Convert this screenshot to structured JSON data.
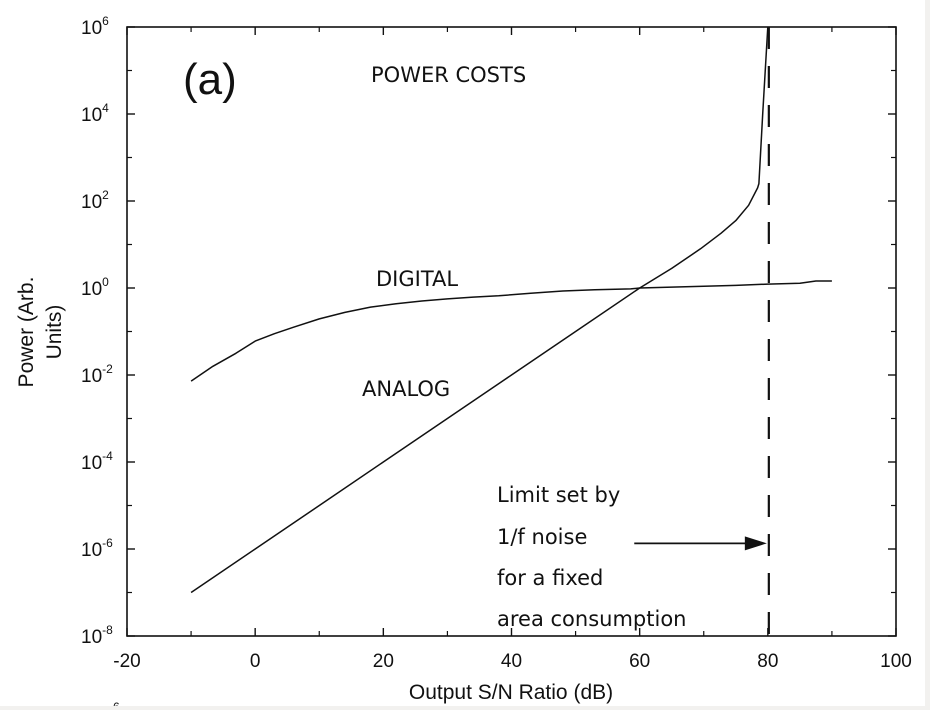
{
  "chart_data": {
    "type": "line",
    "panel_label": "(a)",
    "title": "POWER COSTS",
    "xlabel": "Output S/N Ratio (dB)",
    "ylabel_lines": [
      "Power (Arb.",
      "Units)"
    ],
    "xlim": [
      -20,
      100
    ],
    "ylim_log10": [
      -8,
      6
    ],
    "yscale": "log",
    "grid": false,
    "x_ticks": [
      -20,
      0,
      20,
      40,
      60,
      80,
      100
    ],
    "x_tick_labels": [
      "-20",
      "0",
      "20",
      "40",
      "60",
      "80",
      "100"
    ],
    "x_minor_ticks": [
      -10,
      10,
      30,
      50,
      70,
      90
    ],
    "y_tick_exponents": [
      6,
      4,
      2,
      0,
      -2,
      -4,
      -6,
      -8
    ],
    "y_tick_base": "10",
    "y_tick_labels": [
      {
        "base": "10",
        "exp": "6"
      },
      {
        "base": "10",
        "exp": "4"
      },
      {
        "base": "10",
        "exp": "2"
      },
      {
        "base": "10",
        "exp": "0"
      },
      {
        "base": "10",
        "exp": "-2"
      },
      {
        "base": "10",
        "exp": "-4"
      },
      {
        "base": "10",
        "exp": "-6"
      },
      {
        "base": "10",
        "exp": "-8"
      }
    ],
    "y_minor_exponents": [
      5,
      3,
      1,
      -1,
      -3,
      -5,
      -7
    ],
    "series": [
      {
        "name": "DIGITAL",
        "style": "solid",
        "x": [
          -10,
          -6.6,
          -3,
          0,
          3,
          6,
          10,
          14,
          18,
          22,
          26,
          30,
          34,
          38,
          43,
          48,
          53,
          58.6,
          60,
          65,
          70,
          75,
          80,
          85,
          87.5,
          90
        ],
        "log10_y": [
          -2.14,
          -1.8,
          -1.5,
          -1.22,
          -1.05,
          -0.9,
          -0.71,
          -0.56,
          -0.44,
          -0.36,
          -0.3,
          -0.25,
          -0.21,
          -0.18,
          -0.12,
          -0.07,
          -0.04,
          -0.02,
          0.0,
          0.02,
          0.04,
          0.06,
          0.09,
          0.11,
          0.16,
          0.16
        ]
      },
      {
        "name": "ANALOG",
        "style": "solid",
        "x": [
          -10,
          0,
          10,
          20,
          30,
          40,
          50,
          60,
          65,
          69.5,
          72.7,
          75,
          77,
          78.4,
          78.6,
          79.2,
          80
        ],
        "log10_y": [
          -7.0,
          -6.0,
          -5.0,
          -4.0,
          -3.0,
          -2.0,
          -1.0,
          0.0,
          0.45,
          0.9,
          1.26,
          1.55,
          1.9,
          2.3,
          2.4,
          4.0,
          6.0
        ]
      }
    ],
    "vertical_line": {
      "x": 80,
      "style": "dashed",
      "label": "1/f noise limit"
    },
    "annotations": {
      "curve_label_digital": "DIGITAL",
      "curve_label_analog": "ANALOG",
      "limit_text_lines": [
        "Limit set by",
        "1/f noise",
        "for a fixed",
        "area consumption"
      ],
      "arrow": {
        "from_x": 59,
        "to_x": 80,
        "log10_y": -5.87
      }
    },
    "clipped_fragment": "6"
  }
}
